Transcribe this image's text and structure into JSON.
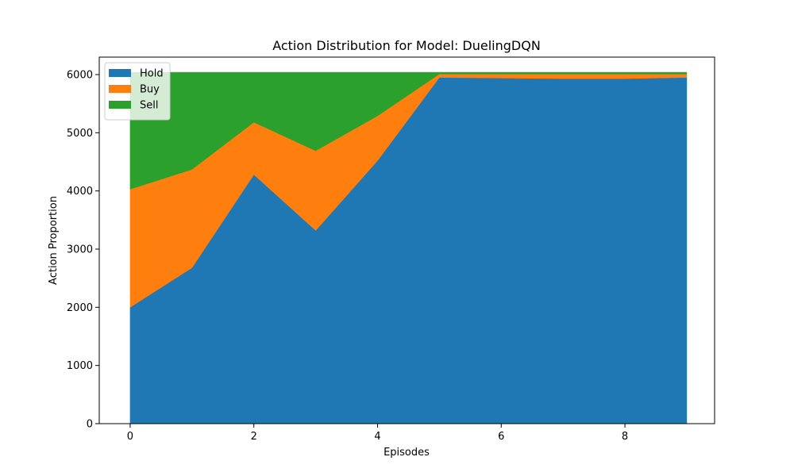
{
  "chart_data": {
    "type": "area",
    "stacked": true,
    "title": "Action Distribution for Model: DuelingDQN",
    "xlabel": "Episodes",
    "ylabel": "Action Proportion",
    "x": [
      0,
      1,
      2,
      3,
      4,
      5,
      6,
      7,
      8,
      9
    ],
    "xlim": [
      -0.5,
      9.45
    ],
    "ylim": [
      0,
      6300
    ],
    "xticks": [
      0,
      2,
      4,
      6,
      8
    ],
    "yticks": [
      0,
      1000,
      2000,
      3000,
      4000,
      5000,
      6000
    ],
    "grid": false,
    "legend_position": "upper-left",
    "series": [
      {
        "name": "Hold",
        "color": "#1f77b4",
        "values": [
          2000,
          2680,
          4280,
          3320,
          4520,
          5950,
          5940,
          5930,
          5930,
          5950
        ]
      },
      {
        "name": "Buy",
        "color": "#ff7f0e",
        "values": [
          2030,
          1690,
          900,
          1370,
          770,
          60,
          70,
          80,
          80,
          60
        ]
      },
      {
        "name": "Sell",
        "color": "#2ca02c",
        "values": [
          2010,
          1670,
          860,
          1350,
          750,
          30,
          30,
          30,
          30,
          30
        ]
      }
    ]
  }
}
